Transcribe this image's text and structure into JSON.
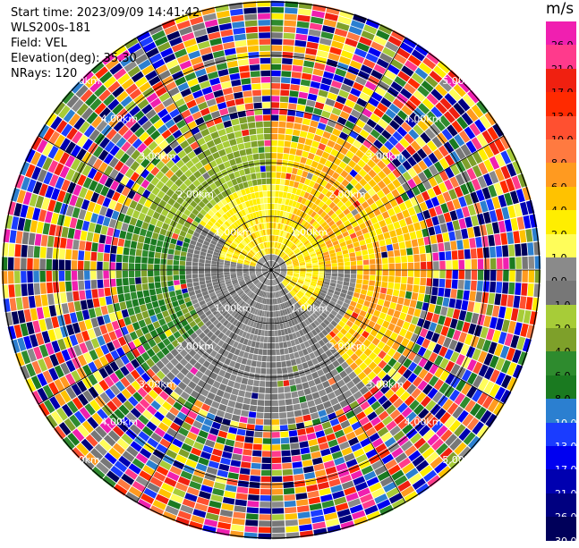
{
  "header": {
    "start_time": "Start time: 2023/09/09 14:41:42",
    "instrument": "WLS200s-181",
    "field": "Field: VEL",
    "elevation": "Elevation(deg): 35.30",
    "nrays": "NRays: 120"
  },
  "colorbar": {
    "unit": "m/s",
    "levels": [
      {
        "label": "26.0",
        "color": "#f01fb0"
      },
      {
        "label": "21.0",
        "color": "#ff3a8c"
      },
      {
        "label": "17.0",
        "color": "#f02010"
      },
      {
        "label": "13.0",
        "color": "#ff2a00"
      },
      {
        "label": "10.0",
        "color": "#ff5030"
      },
      {
        "label": "8.0",
        "color": "#ff7a40"
      },
      {
        "label": "6.0",
        "color": "#ff9a20"
      },
      {
        "label": "4.0",
        "color": "#ffc200"
      },
      {
        "label": "2.0",
        "color": "#ffee00"
      },
      {
        "label": "1.0",
        "color": "#fffd5a"
      },
      {
        "label": "0.0",
        "color": "#8a8a8a"
      },
      {
        "label": "-1.0",
        "color": "#777777"
      },
      {
        "label": "-2.0",
        "color": "#a7cc38"
      },
      {
        "label": "-4.0",
        "color": "#7ea02a"
      },
      {
        "label": "-6.0",
        "color": "#2e8b2e"
      },
      {
        "label": "-8.0",
        "color": "#1a7a20"
      },
      {
        "label": "-10.0",
        "color": "#2b7fd0"
      },
      {
        "label": "-13.0",
        "color": "#1a3cff"
      },
      {
        "label": "-17.0",
        "color": "#0000f0"
      },
      {
        "label": "-21.0",
        "color": "#0000b0"
      },
      {
        "label": "-26.0",
        "color": "#000080"
      },
      {
        "label": "-30.0",
        "color": "#00005a"
      }
    ]
  },
  "range_rings": [
    {
      "label": "1.00km"
    },
    {
      "label": "2.00km"
    },
    {
      "label": "3.00km"
    },
    {
      "label": "4.00km"
    },
    {
      "label": "5.00km"
    }
  ]
}
